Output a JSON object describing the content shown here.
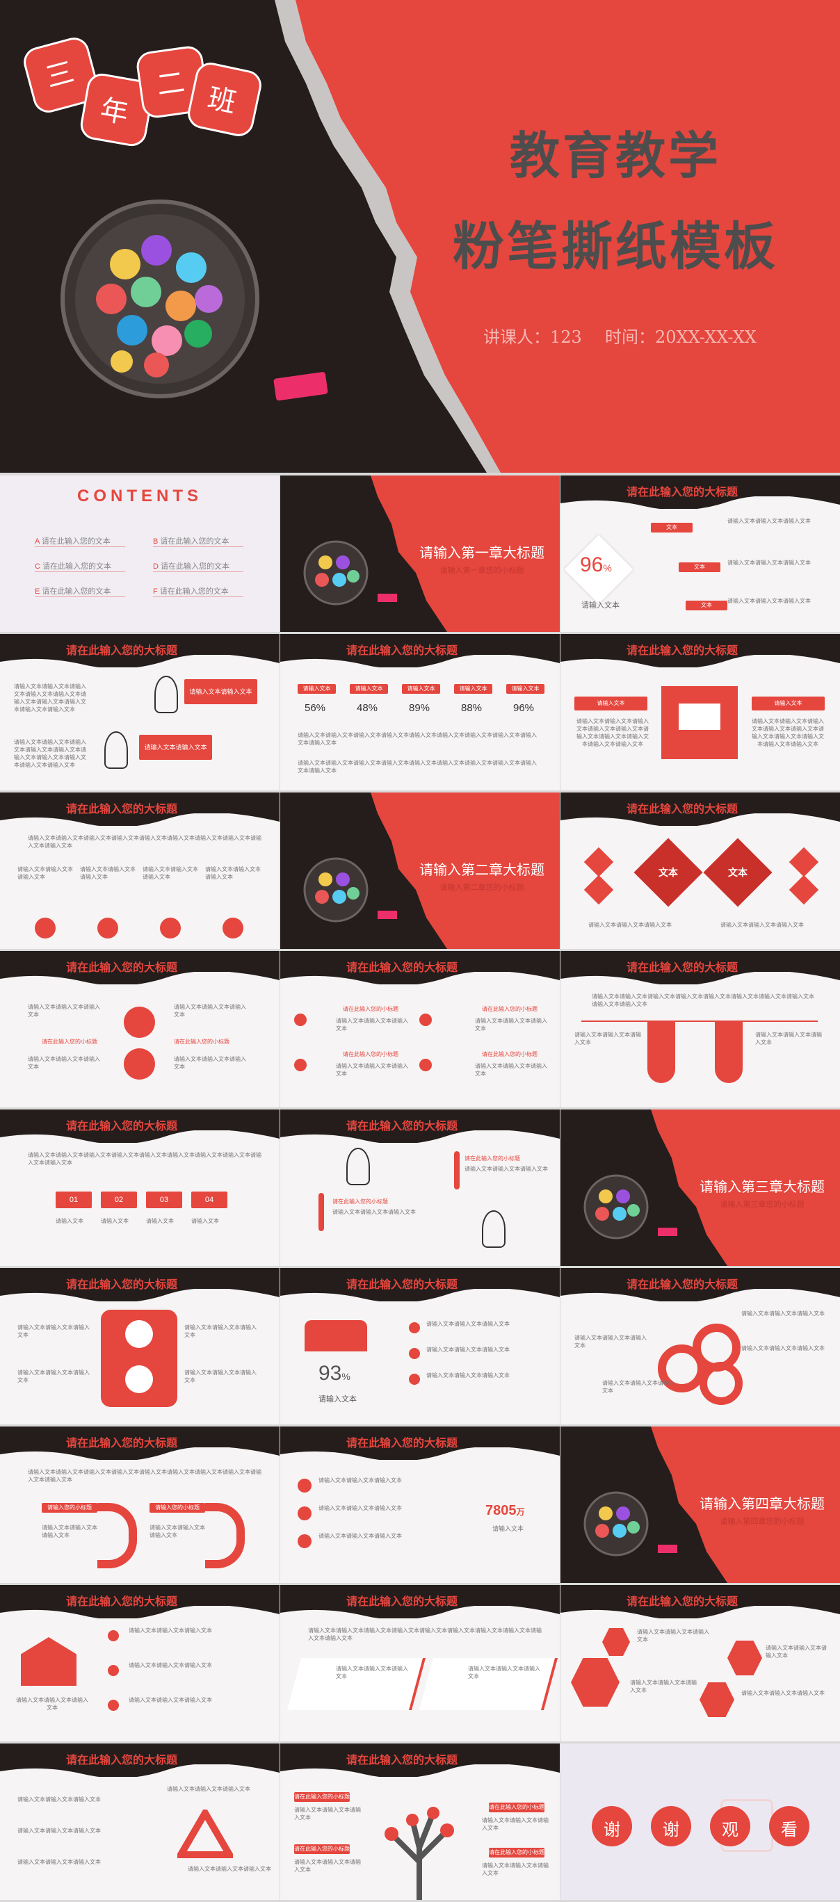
{
  "hero": {
    "badges": [
      "三",
      "年",
      "二",
      "班"
    ],
    "title1": "教育教学",
    "title2": "粉笔撕纸模板",
    "teacher_label": "讲课人：123",
    "time_label": "时间：20XX-XX-XX"
  },
  "contents": {
    "heading": "CONTENTS",
    "items": [
      {
        "letter": "A",
        "text": "请在此输入您的文本"
      },
      {
        "letter": "B",
        "text": "请在此输入您的文本"
      },
      {
        "letter": "C",
        "text": "请在此输入您的文本"
      },
      {
        "letter": "D",
        "text": "请在此输入您的文本"
      },
      {
        "letter": "E",
        "text": "请在此输入您的文本"
      },
      {
        "letter": "F",
        "text": "请在此输入您的文本"
      }
    ]
  },
  "slide_title": "请在此输入您的大标题",
  "chapters": [
    {
      "title": "请输入第一章大标题",
      "sub": "请输入第一章您的小标题"
    },
    {
      "title": "请输入第二章大标题",
      "sub": "请输入第二章您的小标题"
    },
    {
      "title": "请输入第三章大标题",
      "sub": "请输入第三章您的小标题"
    },
    {
      "title": "请输入第四章大标题",
      "sub": "请输入第四章您的小标题"
    }
  ],
  "text": {
    "short": "请输入文本",
    "label": "文本",
    "line": "请输入文本请输入文本请输入文本",
    "long": "请输入文本请输入文本请输入文本请输入文本请输入文本请输入文本请输入文本请输入文本请输入文本请输入文本",
    "placeholder_sub": "请在此输入您的小标题",
    "double": "请输入文本请输入文本",
    "photo_label": "请输入您的小标题"
  },
  "stats": {
    "percent_main": "96",
    "percent_unit": "%",
    "percents": [
      "56%",
      "48%",
      "89%",
      "88%",
      "96%"
    ],
    "people_percent": "93",
    "people_unit": "%",
    "big_number": "7805",
    "big_unit": "万",
    "steps": [
      "01",
      "02",
      "03",
      "04"
    ]
  },
  "thanks": [
    "谢",
    "谢",
    "观",
    "看"
  ]
}
